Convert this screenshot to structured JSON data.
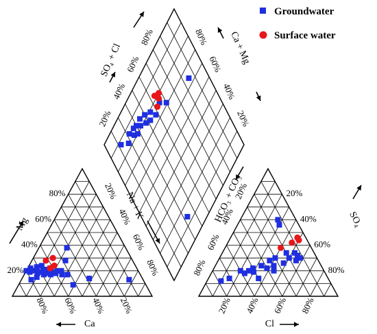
{
  "chart_data": {
    "type": "scatter",
    "subtype": "piper-diagram",
    "legend": {
      "placement": "top-right",
      "entries": [
        {
          "label": "Groundwater",
          "color": "#1f2fe0",
          "marker": "square"
        },
        {
          "label": "Surface water",
          "color": "#e8161b",
          "marker": "circle"
        }
      ]
    },
    "grid_step_percent": 10,
    "tick_labels": {
      "left_triangle_mg": [
        "20%",
        "40%",
        "60%",
        "80%"
      ],
      "left_triangle_na_k": [
        "20%",
        "40%",
        "60%",
        "80%"
      ],
      "left_triangle_ca": [
        "80%",
        "60%",
        "40%",
        "20%"
      ],
      "right_triangle_hco3_co3": [
        "80%",
        "60%",
        "40%",
        "20%"
      ],
      "right_triangle_so4": [
        "80%",
        "60%",
        "40%",
        "20%"
      ],
      "right_triangle_cl": [
        "20%",
        "40%",
        "60%",
        "80%"
      ],
      "diamond_so4_cl": [
        "20%",
        "40%",
        "60%",
        "80%"
      ],
      "diamond_ca_mg": [
        "80%",
        "60%",
        "40%",
        "20%"
      ]
    },
    "axis_labels": {
      "mg": "Mg",
      "na_k": "Na + K",
      "ca": "Ca",
      "hco3_co3": "HCO₃ + CO₃",
      "so4": "SO₄",
      "cl": "Cl",
      "so4_cl": "SO₄ + Cl",
      "ca_mg": "Ca + Mg"
    },
    "series": [
      {
        "name": "Groundwater",
        "cation_triangle": [
          {
            "ca": 80,
            "mg": 20
          },
          {
            "ca": 78,
            "mg": 19
          },
          {
            "ca": 76,
            "mg": 22
          },
          {
            "ca": 74,
            "mg": 20
          },
          {
            "ca": 73,
            "mg": 18
          },
          {
            "ca": 72,
            "mg": 21
          },
          {
            "ca": 71,
            "mg": 23
          },
          {
            "ca": 70,
            "mg": 19
          },
          {
            "ca": 69,
            "mg": 17
          },
          {
            "ca": 68,
            "mg": 20
          },
          {
            "ca": 67,
            "mg": 24
          },
          {
            "ca": 66,
            "mg": 18
          },
          {
            "ca": 65,
            "mg": 21
          },
          {
            "ca": 64,
            "mg": 17
          },
          {
            "ca": 63,
            "mg": 19
          },
          {
            "ca": 62,
            "mg": 22
          },
          {
            "ca": 60,
            "mg": 18
          },
          {
            "ca": 58,
            "mg": 20
          },
          {
            "ca": 56,
            "mg": 17
          },
          {
            "ca": 55,
            "mg": 20
          },
          {
            "ca": 52,
            "mg": 17
          },
          {
            "ca": 48,
            "mg": 28
          },
          {
            "ca": 42,
            "mg": 38
          },
          {
            "ca": 38,
            "mg": 14
          },
          {
            "ca": 52,
            "mg": 9
          },
          {
            "ca": 80,
            "mg": 13
          },
          {
            "ca": 75,
            "mg": 15
          },
          {
            "ca": 10,
            "mg": 13
          }
        ],
        "anion_triangle": [
          {
            "cl": 10,
            "so4": 12
          },
          {
            "cl": 20,
            "so4": 20
          },
          {
            "cl": 24,
            "so4": 18
          },
          {
            "cl": 26,
            "so4": 20
          },
          {
            "cl": 28,
            "so4": 22
          },
          {
            "cl": 30,
            "so4": 19
          },
          {
            "cl": 33,
            "so4": 24
          },
          {
            "cl": 36,
            "so4": 14
          },
          {
            "cl": 37,
            "so4": 28
          },
          {
            "cl": 38,
            "so4": 22
          },
          {
            "cl": 40,
            "so4": 30
          },
          {
            "cl": 42,
            "so4": 24
          },
          {
            "cl": 44,
            "so4": 20
          },
          {
            "cl": 46,
            "so4": 34
          },
          {
            "cl": 48,
            "so4": 26
          },
          {
            "cl": 50,
            "so4": 30
          },
          {
            "cl": 52,
            "so4": 34
          },
          {
            "cl": 55,
            "so4": 32
          },
          {
            "cl": 56,
            "so4": 28
          },
          {
            "cl": 58,
            "so4": 30
          },
          {
            "cl": 30,
            "so4": 56
          },
          {
            "cl": 27,
            "so4": 60
          },
          {
            "cl": 15,
            "so4": 14
          }
        ],
        "diamond": [
          {
            "so4_cl": 12,
            "ca_mg": 88
          },
          {
            "so4_cl": 18,
            "ca_mg": 83
          },
          {
            "so4_cl": 22,
            "ca_mg": 86
          },
          {
            "so4_cl": 25,
            "ca_mg": 82
          },
          {
            "so4_cl": 27,
            "ca_mg": 85
          },
          {
            "so4_cl": 28,
            "ca_mg": 80
          },
          {
            "so4_cl": 30,
            "ca_mg": 84
          },
          {
            "so4_cl": 33,
            "ca_mg": 81
          },
          {
            "so4_cl": 35,
            "ca_mg": 84
          },
          {
            "so4_cl": 38,
            "ca_mg": 78
          },
          {
            "so4_cl": 40,
            "ca_mg": 82
          },
          {
            "so4_cl": 42,
            "ca_mg": 76
          },
          {
            "so4_cl": 45,
            "ca_mg": 79
          },
          {
            "so4_cl": 48,
            "ca_mg": 74
          },
          {
            "so4_cl": 55,
            "ca_mg": 76
          },
          {
            "so4_cl": 60,
            "ca_mg": 71
          },
          {
            "so4_cl": 85,
            "ca_mg": 64
          },
          {
            "so4_cl": 33,
            "ca_mg": 14
          }
        ]
      },
      {
        "name": "Surface water",
        "cation_triangle": [
          {
            "ca": 62,
            "mg": 28
          },
          {
            "ca": 58,
            "mg": 24
          },
          {
            "ca": 62,
            "mg": 22
          },
          {
            "ca": 56,
            "mg": 30
          }
        ],
        "anion_triangle": [
          {
            "cl": 48,
            "so4": 46
          },
          {
            "cl": 50,
            "so4": 44
          },
          {
            "cl": 46,
            "so4": 42
          },
          {
            "cl": 40,
            "so4": 38
          }
        ],
        "diamond": [
          {
            "so4_cl": 54,
            "ca_mg": 82
          },
          {
            "so4_cl": 58,
            "ca_mg": 80
          },
          {
            "so4_cl": 56,
            "ca_mg": 78
          },
          {
            "so4_cl": 52,
            "ca_mg": 76
          }
        ]
      }
    ]
  }
}
